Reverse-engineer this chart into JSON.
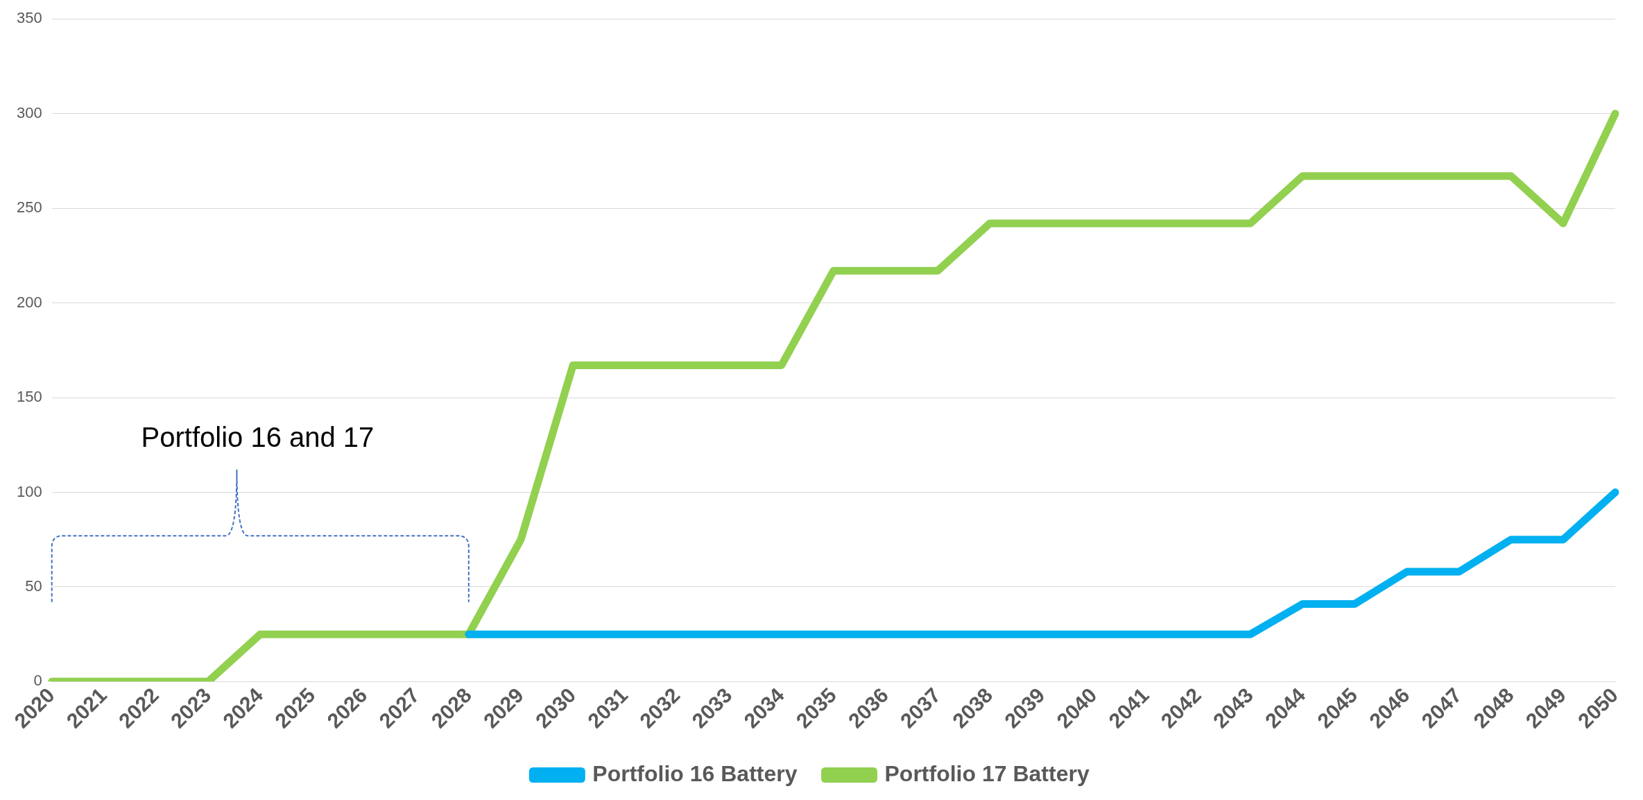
{
  "chart_data": {
    "type": "line",
    "categories": [
      "2020",
      "2021",
      "2022",
      "2023",
      "2024",
      "2025",
      "2026",
      "2027",
      "2028",
      "2029",
      "2030",
      "2031",
      "2032",
      "2033",
      "2034",
      "2035",
      "2036",
      "2037",
      "2038",
      "2039",
      "2040",
      "2041",
      "2042",
      "2043",
      "2044",
      "2045",
      "2046",
      "2047",
      "2048",
      "2049",
      "2050"
    ],
    "series": [
      {
        "name": "Portfolio 16 Battery",
        "color": "#00b0f0",
        "values": [
          null,
          null,
          null,
          null,
          null,
          null,
          null,
          null,
          25,
          25,
          25,
          25,
          25,
          25,
          25,
          25,
          25,
          25,
          25,
          25,
          25,
          25,
          25,
          25,
          41,
          41,
          58,
          58,
          75,
          75,
          100
        ]
      },
      {
        "name": "Portfolio 17 Battery",
        "color": "#92d050",
        "values": [
          0,
          0,
          0,
          0,
          25,
          25,
          25,
          25,
          25,
          75,
          167,
          167,
          167,
          167,
          167,
          217,
          217,
          217,
          242,
          242,
          242,
          242,
          242,
          242,
          267,
          267,
          267,
          267,
          267,
          242,
          300
        ]
      }
    ],
    "ylim": [
      0,
      350
    ],
    "yticks": [
      0,
      50,
      100,
      150,
      200,
      250,
      300,
      350
    ],
    "grid": "y",
    "legend": "bottom",
    "marker": "none",
    "line_style": "solid",
    "annotations": [
      "Portfolio 16 and 17"
    ]
  }
}
